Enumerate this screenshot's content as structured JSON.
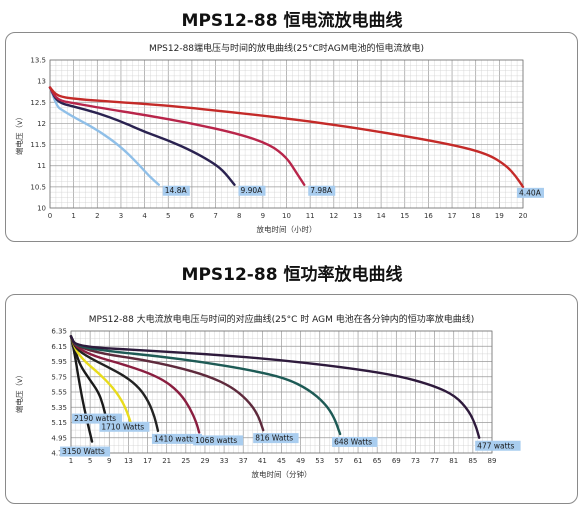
{
  "page": {
    "title_top": "MPS12-88 恒电流放电曲线",
    "title_bottom": "MPS12-88 恒功率放电曲线"
  },
  "chart_data": [
    {
      "type": "line",
      "title": "MPS12-88端电压与时间的放电曲线(25°C时AGM电池的恒电流放电)",
      "xlabel": "放电时间（小时）",
      "ylabel": "端电压（v）",
      "xlim": [
        0,
        20
      ],
      "ylim": [
        10,
        13.5
      ],
      "x_ticks": [
        "0",
        "1",
        "2",
        "3",
        "4",
        "5",
        "6",
        "7",
        "8",
        "9",
        "10",
        "11",
        "12",
        "13",
        "14",
        "15",
        "16",
        "17",
        "18",
        "19",
        "20"
      ],
      "y_ticks": [
        "10",
        "10.5",
        "11",
        "11.5",
        "12",
        "12.5",
        "13",
        "13.5"
      ],
      "grid": true,
      "series": [
        {
          "name": "14.8A",
          "color": "#8fbfe8",
          "points": [
            [
              0,
              12.85
            ],
            [
              0.3,
              12.4
            ],
            [
              0.5,
              12.32
            ],
            [
              1,
              12.15
            ],
            [
              2,
              11.85
            ],
            [
              3,
              11.45
            ],
            [
              3.8,
              11.0
            ],
            [
              4.2,
              10.75
            ],
            [
              4.6,
              10.55
            ]
          ]
        },
        {
          "name": "9.90A",
          "color": "#2a2250",
          "points": [
            [
              0,
              12.85
            ],
            [
              0.3,
              12.5
            ],
            [
              1,
              12.4
            ],
            [
              2,
              12.25
            ],
            [
              3,
              12.05
            ],
            [
              4,
              11.8
            ],
            [
              5,
              11.6
            ],
            [
              6,
              11.35
            ],
            [
              6.8,
              11.1
            ],
            [
              7.3,
              10.9
            ],
            [
              7.8,
              10.55
            ]
          ]
        },
        {
          "name": "7.98A",
          "color": "#b8254a",
          "points": [
            [
              0,
              12.85
            ],
            [
              0.3,
              12.55
            ],
            [
              1,
              12.48
            ],
            [
              2,
              12.38
            ],
            [
              4,
              12.2
            ],
            [
              6,
              12.0
            ],
            [
              8,
              11.75
            ],
            [
              9.3,
              11.5
            ],
            [
              10,
              11.2
            ],
            [
              10.4,
              10.85
            ],
            [
              10.75,
              10.55
            ]
          ]
        },
        {
          "name": "4.40A",
          "color": "#c42a28",
          "points": [
            [
              0,
              12.85
            ],
            [
              0.3,
              12.65
            ],
            [
              1,
              12.58
            ],
            [
              3,
              12.5
            ],
            [
              5,
              12.42
            ],
            [
              8,
              12.25
            ],
            [
              11,
              12.05
            ],
            [
              14,
              11.8
            ],
            [
              17,
              11.5
            ],
            [
              18.5,
              11.28
            ],
            [
              19.3,
              11.0
            ],
            [
              19.7,
              10.75
            ],
            [
              20,
              10.5
            ]
          ]
        }
      ]
    },
    {
      "type": "line",
      "title": "MPS12-88 大电流放电电压与时间的对应曲线(25°C 时 AGM 电池在各分钟内的恒功率放电曲线)",
      "xlabel": "放电时间（分钟）",
      "ylabel": "端电压（v）",
      "xlim": [
        1,
        93
      ],
      "ylim": [
        4.75,
        6.35
      ],
      "x_ticks": [
        "1",
        "5",
        "9",
        "13",
        "17",
        "21",
        "25",
        "29",
        "33",
        "37",
        "41",
        "45",
        "49",
        "53",
        "57",
        "61",
        "65",
        "69",
        "73",
        "77",
        "81",
        "85",
        "89"
      ],
      "y_ticks": [
        "4.75",
        "4.95",
        "5.15",
        "5.35",
        "5.55",
        "5.75",
        "5.95",
        "6.15",
        "6.35"
      ],
      "grid": true,
      "series": [
        {
          "name": "3150 Watts",
          "color": "#1a1a1a",
          "points": [
            [
              1,
              6.28
            ],
            [
              1.8,
              6.05
            ],
            [
              2.6,
              5.75
            ],
            [
              3.5,
              5.45
            ],
            [
              4.4,
              5.2
            ],
            [
              5.2,
              5.0
            ],
            [
              5.6,
              4.9
            ]
          ]
        },
        {
          "name": "2190 watts",
          "color": "#1a1a1a",
          "points": [
            [
              1,
              6.28
            ],
            [
              2,
              6.08
            ],
            [
              3,
              5.9
            ],
            [
              5,
              5.72
            ],
            [
              7,
              5.55
            ],
            [
              8,
              5.38
            ],
            [
              8.7,
              5.2
            ],
            [
              9.1,
              5.07
            ]
          ]
        },
        {
          "name": "1710 Watts",
          "color": "#e8dc1c",
          "points": [
            [
              1,
              6.28
            ],
            [
              2,
              6.1
            ],
            [
              4,
              5.95
            ],
            [
              7,
              5.8
            ],
            [
              10,
              5.62
            ],
            [
              12,
              5.45
            ],
            [
              13.2,
              5.3
            ],
            [
              14.2,
              5.12
            ]
          ]
        },
        {
          "name": "1410 watts",
          "color": "#232323",
          "points": [
            [
              1,
              6.28
            ],
            [
              2,
              6.12
            ],
            [
              5,
              6.0
            ],
            [
              9,
              5.88
            ],
            [
              13,
              5.75
            ],
            [
              16,
              5.6
            ],
            [
              18,
              5.42
            ],
            [
              19.3,
              5.22
            ],
            [
              20,
              5.04
            ]
          ]
        },
        {
          "name": "1068 watts",
          "color": "#8a1e40",
          "points": [
            [
              1,
              6.28
            ],
            [
              2,
              6.14
            ],
            [
              6,
              6.02
            ],
            [
              12,
              5.92
            ],
            [
              18,
              5.8
            ],
            [
              22,
              5.68
            ],
            [
              25,
              5.52
            ],
            [
              27,
              5.34
            ],
            [
              28.4,
              5.15
            ],
            [
              29,
              5.02
            ]
          ]
        },
        {
          "name": "816 Watts",
          "color": "#5e2a3c",
          "points": [
            [
              1,
              6.28
            ],
            [
              2,
              6.15
            ],
            [
              8,
              6.05
            ],
            [
              16,
              5.98
            ],
            [
              24,
              5.88
            ],
            [
              31,
              5.76
            ],
            [
              36,
              5.62
            ],
            [
              39.5,
              5.45
            ],
            [
              41.8,
              5.26
            ],
            [
              43,
              5.05
            ]
          ]
        },
        {
          "name": "648 Watts",
          "color": "#1d5a55",
          "points": [
            [
              1,
              6.28
            ],
            [
              2,
              6.15
            ],
            [
              10,
              6.08
            ],
            [
              20,
              6.02
            ],
            [
              30,
              5.94
            ],
            [
              40,
              5.84
            ],
            [
              48,
              5.73
            ],
            [
              53,
              5.58
            ],
            [
              56.5,
              5.4
            ],
            [
              58.5,
              5.22
            ],
            [
              59.8,
              5.0
            ]
          ]
        },
        {
          "name": "477 watts",
          "color": "#2e1a3c",
          "points": [
            [
              1,
              6.28
            ],
            [
              2,
              6.15
            ],
            [
              15,
              6.1
            ],
            [
              30,
              6.05
            ],
            [
              45,
              5.98
            ],
            [
              60,
              5.88
            ],
            [
              72,
              5.77
            ],
            [
              80,
              5.64
            ],
            [
              85,
              5.5
            ],
            [
              88,
              5.3
            ],
            [
              89.5,
              5.1
            ],
            [
              90.2,
              4.95
            ]
          ]
        }
      ]
    }
  ]
}
